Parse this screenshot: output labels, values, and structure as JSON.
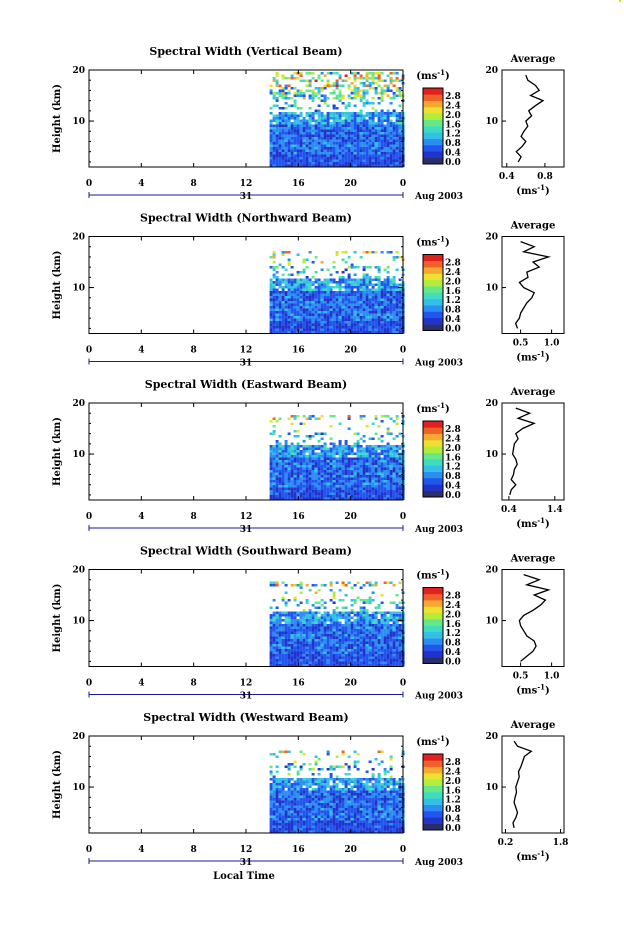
{
  "figure": {
    "xlabel": "Local Time",
    "date_label": "Aug 2003",
    "day_label": "31",
    "ylabel": "Height (km)",
    "colorbar_unit_base": "(ms",
    "colorbar_unit_exp": "-1",
    "colorbar_unit_close": ")",
    "colorbar_ticks": [
      "2.8",
      "2.4",
      "2.0",
      "1.6",
      "1.2",
      "0.8",
      "0.4",
      "0.0"
    ],
    "colormap": [
      "#2a2f6b",
      "#2233cc",
      "#2255ee",
      "#2b8ef0",
      "#33c0e8",
      "#3fdcc0",
      "#66e888",
      "#b4ec3c",
      "#ece030",
      "#f7a830",
      "#f2602a",
      "#e12020"
    ],
    "average_title": "Average",
    "average_unit_base": "(ms",
    "average_unit_exp": "-1",
    "average_unit_close": ")"
  },
  "chart_data": [
    {
      "type": "heatmap",
      "title": "Spectral Width (Vertical Beam)",
      "x_ticks": [
        "0",
        "4",
        "8",
        "12",
        "16",
        "20",
        "0"
      ],
      "x_range": [
        0,
        24
      ],
      "y_ticks": [
        "20",
        "10"
      ],
      "y_range": [
        1,
        20
      ],
      "data_start_hour": 13.8,
      "data_top_km": 19.5,
      "value_range": [
        0.0,
        3.0
      ],
      "average": {
        "x_ticks": [
          "0.4",
          "0.8"
        ],
        "x_range": [
          0.35,
          1.0
        ],
        "heights_km": [
          2,
          3,
          4,
          5,
          6,
          7,
          8,
          9,
          10,
          11,
          12,
          13,
          14,
          15,
          16,
          17,
          18,
          19
        ],
        "values": [
          0.52,
          0.55,
          0.5,
          0.56,
          0.6,
          0.55,
          0.58,
          0.62,
          0.6,
          0.66,
          0.63,
          0.7,
          0.78,
          0.65,
          0.74,
          0.7,
          0.62,
          0.6
        ]
      }
    },
    {
      "type": "heatmap",
      "title": "Spectral Width (Northward Beam)",
      "x_ticks": [
        "0",
        "4",
        "8",
        "12",
        "16",
        "20",
        "0"
      ],
      "x_range": [
        0,
        24
      ],
      "y_ticks": [
        "20",
        "10"
      ],
      "y_range": [
        1,
        20
      ],
      "data_start_hour": 13.8,
      "data_top_km": 17.0,
      "value_range": [
        0.0,
        3.0
      ],
      "average": {
        "x_ticks": [
          "0.5",
          "1.0"
        ],
        "x_range": [
          0.2,
          1.2
        ],
        "heights_km": [
          2,
          3,
          4,
          5,
          6,
          7,
          8,
          9,
          10,
          11,
          12,
          13,
          14,
          15,
          16,
          17,
          18,
          19
        ],
        "values": [
          0.45,
          0.42,
          0.48,
          0.5,
          0.55,
          0.6,
          0.68,
          0.72,
          0.55,
          0.48,
          0.62,
          0.6,
          0.8,
          0.7,
          0.95,
          0.55,
          0.72,
          0.5
        ]
      }
    },
    {
      "type": "heatmap",
      "title": "Spectral Width (Eastward Beam)",
      "x_ticks": [
        "0",
        "4",
        "8",
        "12",
        "16",
        "20",
        "0"
      ],
      "x_range": [
        0,
        24
      ],
      "y_ticks": [
        "20",
        "10"
      ],
      "y_range": [
        1,
        20
      ],
      "data_start_hour": 13.8,
      "data_top_km": 17.5,
      "value_range": [
        0.0,
        3.0
      ],
      "average": {
        "x_ticks": [
          "0.4",
          "1.4"
        ],
        "x_range": [
          0.25,
          1.6
        ],
        "heights_km": [
          2,
          3,
          4,
          5,
          6,
          7,
          8,
          9,
          10,
          11,
          12,
          13,
          14,
          15,
          16,
          17,
          18,
          19
        ],
        "values": [
          0.42,
          0.45,
          0.55,
          0.45,
          0.5,
          0.52,
          0.58,
          0.55,
          0.48,
          0.5,
          0.52,
          0.6,
          0.55,
          0.7,
          0.95,
          0.6,
          0.85,
          0.55
        ]
      }
    },
    {
      "type": "heatmap",
      "title": "Spectral Width (Southward Beam)",
      "x_ticks": [
        "0",
        "4",
        "8",
        "12",
        "16",
        "20",
        "0"
      ],
      "x_range": [
        0,
        24
      ],
      "y_ticks": [
        "20",
        "10"
      ],
      "y_range": [
        1,
        20
      ],
      "data_start_hour": 13.8,
      "data_top_km": 17.5,
      "value_range": [
        0.0,
        3.0
      ],
      "average": {
        "x_ticks": [
          "0.5",
          "1.0"
        ],
        "x_range": [
          0.2,
          1.2
        ],
        "heights_km": [
          2,
          3,
          4,
          5,
          6,
          7,
          8,
          9,
          10,
          11,
          12,
          13,
          14,
          15,
          16,
          17,
          18,
          19
        ],
        "values": [
          0.5,
          0.6,
          0.7,
          0.75,
          0.72,
          0.6,
          0.55,
          0.5,
          0.48,
          0.55,
          0.7,
          0.82,
          0.9,
          0.72,
          0.95,
          0.6,
          0.8,
          0.55
        ]
      }
    },
    {
      "type": "heatmap",
      "title": "Spectral Width (Westward Beam)",
      "x_ticks": [
        "0",
        "4",
        "8",
        "12",
        "16",
        "20",
        "0"
      ],
      "x_range": [
        0,
        24
      ],
      "y_ticks": [
        "20",
        "10"
      ],
      "y_range": [
        1,
        20
      ],
      "data_start_hour": 13.8,
      "data_top_km": 16.8,
      "value_range": [
        0.0,
        3.0
      ],
      "average": {
        "x_ticks": [
          "0.2",
          "1.8"
        ],
        "x_range": [
          0.1,
          1.9
        ],
        "heights_km": [
          2,
          3,
          4,
          5,
          6,
          7,
          8,
          9,
          10,
          11,
          12,
          13,
          14,
          15,
          16,
          17,
          18,
          19
        ],
        "values": [
          0.45,
          0.42,
          0.5,
          0.55,
          0.5,
          0.45,
          0.48,
          0.52,
          0.5,
          0.55,
          0.6,
          0.58,
          0.65,
          0.7,
          0.75,
          0.95,
          0.55,
          0.45
        ]
      }
    }
  ]
}
